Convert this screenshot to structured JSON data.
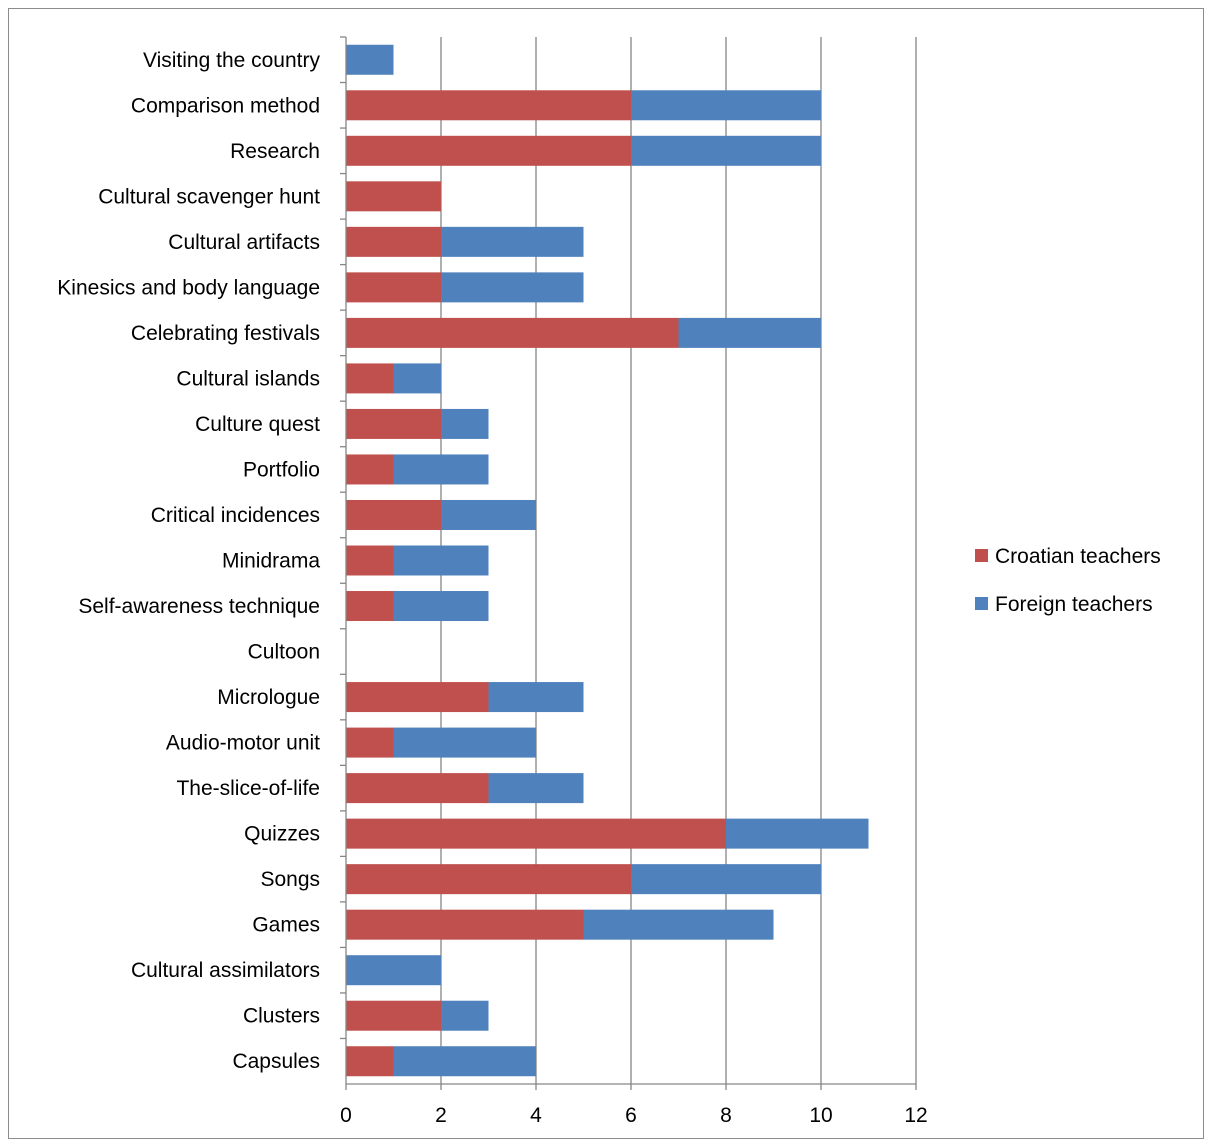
{
  "chart_data": {
    "type": "bar",
    "orientation": "horizontal",
    "stacked": true,
    "categories": [
      "Capsules",
      "Clusters",
      "Cultural assimilators",
      "Games",
      "Songs",
      "Quizzes",
      "The-slice-of-life",
      "Audio-motor unit",
      "Micrologue",
      "Cultoon",
      "Self-awareness technique",
      "Minidrama",
      "Critical incidences",
      "Portfolio",
      "Culture quest",
      "Cultural islands",
      "Celebrating festivals",
      "Kinesics and body language",
      "Cultural artifacts",
      "Cultural scavenger hunt",
      "Research",
      "Comparison method",
      "Visiting the country"
    ],
    "series": [
      {
        "name": "Croatian teachers",
        "color": "#c0504d",
        "values": [
          1,
          2,
          0,
          5,
          6,
          8,
          3,
          1,
          3,
          0,
          1,
          1,
          2,
          1,
          2,
          1,
          7,
          2,
          2,
          2,
          6,
          6,
          0
        ]
      },
      {
        "name": "Foreign teachers",
        "color": "#4f81bd",
        "values": [
          3,
          1,
          2,
          4,
          4,
          3,
          2,
          3,
          2,
          0,
          2,
          2,
          2,
          2,
          1,
          1,
          3,
          3,
          3,
          0,
          4,
          4,
          1
        ]
      }
    ],
    "xlim": [
      0,
      12
    ],
    "xticks": [
      "0",
      "2",
      "4",
      "6",
      "8",
      "10",
      "12"
    ],
    "grid": true,
    "legend_position": "right",
    "title": "",
    "xlabel": "",
    "ylabel": ""
  }
}
